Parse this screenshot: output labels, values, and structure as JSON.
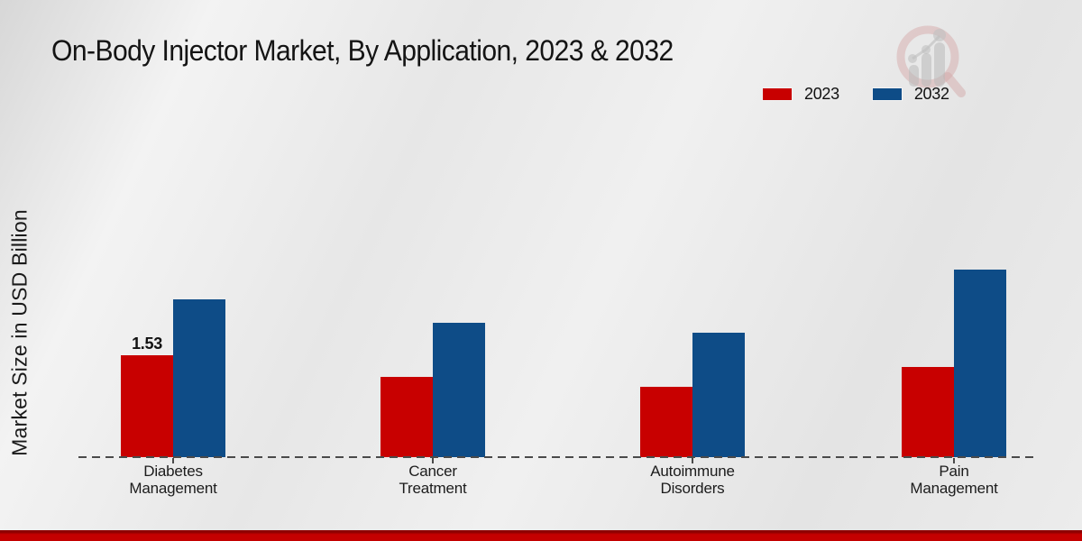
{
  "title": "On-Body Injector Market, By Application, 2023 & 2032",
  "y_axis_label": "Market Size in USD Billion",
  "legend": {
    "items": [
      {
        "label": "2023",
        "color": "#c80000"
      },
      {
        "label": "2032",
        "color": "#0e4c87"
      }
    ]
  },
  "colors": {
    "series_2023": "#c80000",
    "series_2032": "#0e4c87",
    "footer_band": "#c40000",
    "baseline": "#4a4a4a"
  },
  "chart_data": {
    "type": "bar",
    "title": "On-Body Injector Market, By Application, 2023 & 2032",
    "xlabel": "",
    "ylabel": "Market Size in USD Billion",
    "ylim": [
      0,
      3
    ],
    "grid": false,
    "legend_position": "top-right",
    "axis_style": "dashed baseline only, no y-axis ticks",
    "categories": [
      "Diabetes\nManagement",
      "Cancer\nTreatment",
      "Autoimmune\nDisorders",
      "Pain\nManagement"
    ],
    "series": [
      {
        "name": "2023",
        "color": "#c80000",
        "values": [
          1.53,
          1.2,
          1.05,
          1.35
        ],
        "value_labels": [
          "1.53",
          "",
          "",
          ""
        ]
      },
      {
        "name": "2032",
        "color": "#0e4c87",
        "values": [
          2.37,
          2.01,
          1.86,
          2.81
        ],
        "value_labels": [
          "",
          "",
          "",
          ""
        ]
      }
    ]
  }
}
